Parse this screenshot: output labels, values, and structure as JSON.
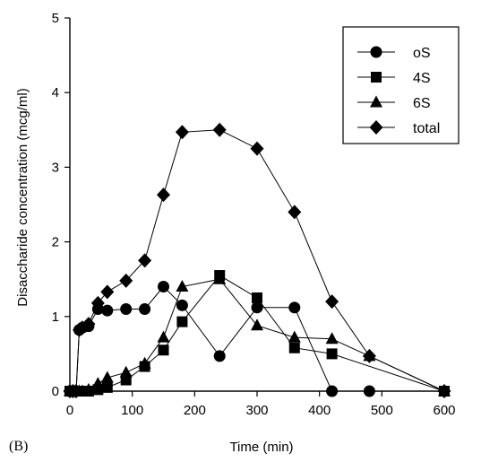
{
  "chart_data": {
    "type": "line",
    "panel_label": "(B)",
    "xlabel": "Time (min)",
    "ylabel": "Disaccharide concentration (mcg/ml)",
    "xlim": [
      0,
      600
    ],
    "ylim": [
      0,
      5
    ],
    "xticks": [
      0,
      100,
      200,
      300,
      400,
      500,
      600
    ],
    "yticks": [
      0,
      1,
      2,
      3,
      4,
      5
    ],
    "grid": false,
    "legend_position": "top-right",
    "series": [
      {
        "name": "oS",
        "marker": "circle",
        "points": [
          [
            0,
            0
          ],
          [
            5,
            0
          ],
          [
            10,
            0
          ],
          [
            15,
            0.82
          ],
          [
            20,
            0.85
          ],
          [
            30,
            0.87
          ],
          [
            45,
            1.1
          ],
          [
            60,
            1.08
          ],
          [
            90,
            1.1
          ],
          [
            120,
            1.1
          ],
          [
            150,
            1.4
          ],
          [
            180,
            1.15
          ],
          [
            240,
            0.47
          ],
          [
            300,
            1.12
          ],
          [
            360,
            1.12
          ],
          [
            420,
            0
          ],
          [
            480,
            0
          ]
        ]
      },
      {
        "name": "4S",
        "marker": "square",
        "points": [
          [
            0,
            0
          ],
          [
            5,
            0
          ],
          [
            10,
            0
          ],
          [
            15,
            0
          ],
          [
            20,
            0
          ],
          [
            30,
            0
          ],
          [
            45,
            0.02
          ],
          [
            60,
            0.05
          ],
          [
            90,
            0.15
          ],
          [
            120,
            0.33
          ],
          [
            150,
            0.55
          ],
          [
            180,
            0.93
          ],
          [
            240,
            1.55
          ],
          [
            300,
            1.25
          ],
          [
            360,
            0.58
          ],
          [
            420,
            0.5
          ],
          [
            600,
            0
          ]
        ]
      },
      {
        "name": "6S",
        "marker": "triangle",
        "points": [
          [
            0,
            0
          ],
          [
            5,
            0
          ],
          [
            10,
            0
          ],
          [
            15,
            0
          ],
          [
            20,
            0
          ],
          [
            30,
            0.02
          ],
          [
            45,
            0.1
          ],
          [
            60,
            0.18
          ],
          [
            90,
            0.25
          ],
          [
            120,
            0.37
          ],
          [
            150,
            0.72
          ],
          [
            180,
            1.4
          ],
          [
            240,
            1.5
          ],
          [
            300,
            0.88
          ],
          [
            360,
            0.72
          ],
          [
            420,
            0.7
          ],
          [
            480,
            0.47
          ],
          [
            600,
            0
          ]
        ]
      },
      {
        "name": "total",
        "marker": "diamond",
        "points": [
          [
            0,
            0
          ],
          [
            5,
            0
          ],
          [
            10,
            0
          ],
          [
            15,
            0.82
          ],
          [
            20,
            0.85
          ],
          [
            30,
            0.9
          ],
          [
            45,
            1.18
          ],
          [
            60,
            1.33
          ],
          [
            90,
            1.48
          ],
          [
            120,
            1.75
          ],
          [
            150,
            2.63
          ],
          [
            180,
            3.47
          ],
          [
            240,
            3.5
          ],
          [
            300,
            3.25
          ],
          [
            360,
            2.4
          ],
          [
            420,
            1.2
          ],
          [
            480,
            0.47
          ],
          [
            600,
            0
          ]
        ]
      }
    ]
  }
}
